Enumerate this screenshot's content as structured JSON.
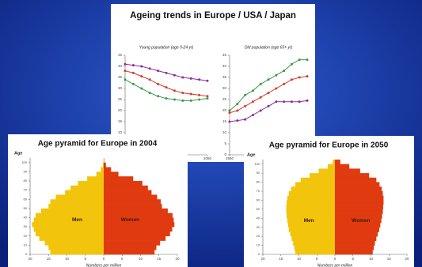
{
  "panel_title": "Ageing trends in Europe / USA / Japan",
  "chart_data": [
    {
      "type": "line",
      "title": "Young population (age 0-24 yr)",
      "x": [
        1950,
        1960,
        1970,
        1980,
        1990,
        2000,
        2010,
        2020,
        2030,
        2040,
        2050
      ],
      "xlim": [
        1950,
        2050
      ],
      "xticks": [
        1950,
        2000,
        2050
      ],
      "ylim": [
        0,
        45
      ],
      "yticks": [
        0,
        5,
        10,
        15,
        20,
        25,
        30,
        35,
        40,
        45
      ],
      "series": [
        {
          "color": "#8e2a9e",
          "values": [
            41,
            40.5,
            40,
            39,
            38,
            37,
            36,
            35,
            34.5,
            34,
            33.5
          ]
        },
        {
          "color": "#d9382c",
          "values": [
            38,
            37,
            35.5,
            34,
            32,
            30.5,
            29,
            28,
            27.5,
            27,
            26.5
          ]
        },
        {
          "color": "#3a9a4a",
          "values": [
            34,
            32,
            30,
            28,
            26.5,
            25.5,
            25,
            24.5,
            24.5,
            25,
            25.5
          ]
        }
      ]
    },
    {
      "type": "line",
      "title": "Old population (age 65+ yr)",
      "x": [
        1950,
        1960,
        1970,
        1980,
        1990,
        2000,
        2010,
        2020,
        2030,
        2040,
        2050
      ],
      "xlim": [
        1950,
        2050
      ],
      "xticks": [
        1950,
        2000,
        2050
      ],
      "ylim": [
        0,
        45
      ],
      "yticks": [
        0,
        5,
        10,
        15,
        20,
        25,
        30,
        35,
        40,
        45
      ],
      "series": [
        {
          "color": "#3a9a4a",
          "values": [
            20,
            23,
            27,
            29,
            32,
            34,
            36,
            38,
            41,
            43,
            43
          ]
        },
        {
          "color": "#d9382c",
          "values": [
            19,
            20,
            22,
            24,
            26,
            28,
            30,
            32,
            34,
            35,
            35.5
          ]
        },
        {
          "color": "#8e2a9e",
          "values": [
            15,
            15.5,
            16,
            18,
            20,
            22,
            24,
            24,
            24,
            24,
            24.5
          ]
        }
      ]
    },
    {
      "type": "pyramid",
      "title": "Age pyramid for Europe in 2004",
      "ylabel": "Age",
      "xlabel": "Numbers per million",
      "y": [
        0,
        5,
        10,
        15,
        20,
        25,
        30,
        35,
        40,
        45,
        50,
        55,
        60,
        65,
        70,
        75,
        80,
        85,
        90,
        95,
        100
      ],
      "ylim": [
        0,
        105
      ],
      "yticks": [
        0,
        10,
        20,
        30,
        40,
        50,
        60,
        70,
        80,
        90,
        100
      ],
      "xlim": [
        -20,
        20
      ],
      "xticks": [
        {
          "value": -20,
          "label": "20"
        },
        {
          "value": -15,
          "label": "15"
        },
        {
          "value": -10,
          "label": "10"
        },
        {
          "value": -5,
          "label": "5"
        },
        0,
        5,
        10,
        15,
        20
      ],
      "series": [
        {
          "name": "Men",
          "color": "#f2c40c",
          "side": "left",
          "values": [
            14.5,
            15,
            16,
            17.5,
            18.5,
            19,
            19.5,
            19,
            18.5,
            17,
            15,
            14.5,
            13,
            10.5,
            9,
            7,
            4.5,
            2,
            0.8,
            0.2,
            0.05
          ]
        },
        {
          "name": "Women",
          "color": "#e03a10",
          "side": "right",
          "values": [
            13.8,
            14.3,
            15.3,
            16.8,
            18,
            18.6,
            19.2,
            19,
            18.7,
            17.4,
            15.8,
            15.5,
            14.5,
            13,
            12,
            10.5,
            8,
            4,
            2,
            0.6,
            0.1
          ]
        }
      ]
    },
    {
      "type": "pyramid",
      "title": "Age pyramid for Europe in 2050",
      "ylabel": "Age",
      "xlabel": "Numbers per million",
      "y": [
        0,
        5,
        10,
        15,
        20,
        25,
        30,
        35,
        40,
        45,
        50,
        55,
        60,
        65,
        70,
        75,
        80,
        85,
        90,
        95,
        100
      ],
      "ylim": [
        0,
        105
      ],
      "yticks": [
        0,
        10,
        20,
        30,
        40,
        50,
        60,
        70,
        80,
        90,
        100
      ],
      "xlim": [
        -20,
        20
      ],
      "xticks": [
        {
          "value": -20,
          "label": "20"
        },
        {
          "value": -15,
          "label": "15"
        },
        {
          "value": -10,
          "label": "10"
        },
        {
          "value": -5,
          "label": "5"
        },
        0,
        5,
        10,
        15,
        20
      ],
      "series": [
        {
          "name": "Men",
          "color": "#f2c40c",
          "side": "left",
          "values": [
            11,
            11.3,
            11.6,
            12,
            12.4,
            12.8,
            13,
            13.2,
            13.4,
            13.5,
            13.5,
            13.4,
            13.2,
            12.8,
            12.2,
            11,
            9.5,
            7,
            4.5,
            2,
            0.6
          ]
        },
        {
          "name": "Women",
          "color": "#e03a10",
          "side": "right",
          "values": [
            10.5,
            10.8,
            11.1,
            11.5,
            11.9,
            12.3,
            12.6,
            12.9,
            13.1,
            13.3,
            13.4,
            13.5,
            13.5,
            13.3,
            13,
            12.4,
            11.5,
            9.5,
            7,
            4,
            1.5
          ]
        }
      ]
    }
  ]
}
